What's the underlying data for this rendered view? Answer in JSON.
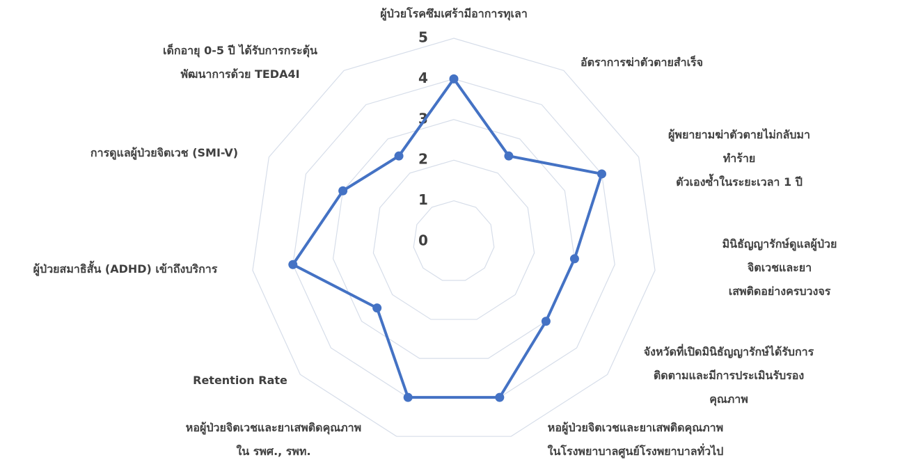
{
  "chart_data": {
    "type": "radar",
    "categories": [
      "ผู้ป่วยโรคซึมเศร้ามีอาการทุเลา",
      "อัตราการฆ่าตัวตายสำเร็จ",
      "ผู้พยายามฆ่าตัวตายไม่กลับมาทำร้าย\nตัวเองซ้ำในระยะเวลา 1 ปี",
      "มินิธัญญารักษ์ดูแลผู้ป่วยจิตเวชและยา\nเสพติดอย่างครบวงจร",
      "จังหวัดที่เปิดมินิธัญญารักษ์ได้รับการ\nติดตามและมีการประเมินรับรองคุณภาพ",
      "หอผู้ป่วยจิตเวชและยาเสพติดคุณภาพ\nในโรงพยาบาลศูนย์โรงพยาบาลทั่วไป",
      "หอผู้ป่วยจิตเวชและยาเสพติดคุณภาพ\nใน รพศ., รพท.",
      "Retention Rate",
      "ผู้ป่วยสมาธิสั้น (ADHD) เข้าถึงบริการ",
      "การดูแลผู้ป่วยจิตเวช (SMI-V)",
      "เด็กอายุ 0-5 ปี ได้รับการกระตุ้น\nพัฒนาการด้วย TEDA4I"
    ],
    "values": [
      4,
      2.5,
      4,
      3,
      3,
      4,
      4,
      2.5,
      4,
      3,
      2.5
    ],
    "color": "#4472c4",
    "ylim": [
      0,
      5
    ],
    "yticks": [
      0,
      1,
      2,
      3,
      4,
      5
    ],
    "grid": true
  }
}
